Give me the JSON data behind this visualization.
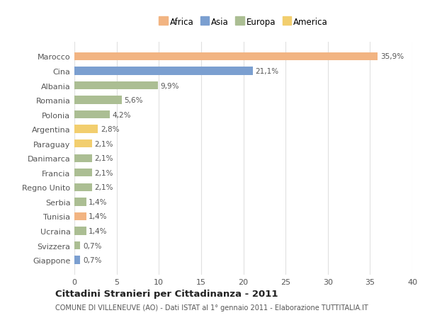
{
  "countries": [
    "Marocco",
    "Cina",
    "Albania",
    "Romania",
    "Polonia",
    "Argentina",
    "Paraguay",
    "Danimarca",
    "Francia",
    "Regno Unito",
    "Serbia",
    "Tunisia",
    "Ucraina",
    "Svizzera",
    "Giappone"
  ],
  "values": [
    35.9,
    21.1,
    9.9,
    5.6,
    4.2,
    2.8,
    2.1,
    2.1,
    2.1,
    2.1,
    1.4,
    1.4,
    1.4,
    0.7,
    0.7
  ],
  "continents": [
    "Africa",
    "Asia",
    "Europa",
    "Europa",
    "Europa",
    "America",
    "America",
    "Europa",
    "Europa",
    "Europa",
    "Europa",
    "Africa",
    "Europa",
    "Europa",
    "Asia"
  ],
  "colors": {
    "Africa": "#F2B482",
    "Asia": "#7B9FD0",
    "Europa": "#ABBE93",
    "America": "#F2CE6E"
  },
  "xlim": [
    0,
    40
  ],
  "xticks": [
    0,
    5,
    10,
    15,
    20,
    25,
    30,
    35,
    40
  ],
  "title": "Cittadini Stranieri per Cittadinanza - 2011",
  "subtitle": "COMUNE DI VILLENEUVE (AO) - Dati ISTAT al 1° gennaio 2011 - Elaborazione TUTTITALIA.IT",
  "bg_color": "#ffffff",
  "plot_bg": "#ffffff",
  "grid_color": "#e0e0e0",
  "bar_height": 0.55,
  "label_fontsize": 7.5,
  "ytick_fontsize": 8.0,
  "xtick_fontsize": 8.0,
  "legend_fontsize": 8.5
}
